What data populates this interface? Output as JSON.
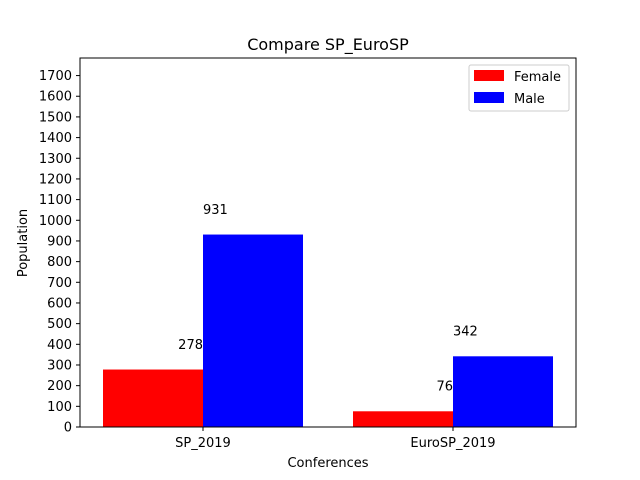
{
  "chart_data": {
    "type": "bar",
    "title": "Compare SP_EuroSP",
    "xlabel": "Conferences",
    "ylabel": "Population",
    "categories": [
      "SP_2019",
      "EuroSP_2019"
    ],
    "series": [
      {
        "name": "Female",
        "values": [
          278,
          76
        ],
        "color": "#ff0000"
      },
      {
        "name": "Male",
        "values": [
          931,
          342
        ],
        "color": "#0000ff"
      }
    ],
    "data_labels": [
      [
        "278",
        "76"
      ],
      [
        "931",
        "342"
      ]
    ],
    "ylim": [
      0,
      1785
    ],
    "yticks": [
      0,
      100,
      200,
      300,
      400,
      500,
      600,
      700,
      800,
      900,
      1000,
      1100,
      1200,
      1300,
      1400,
      1500,
      1600,
      1700
    ],
    "legend_position": "top-right",
    "grid": false
  }
}
